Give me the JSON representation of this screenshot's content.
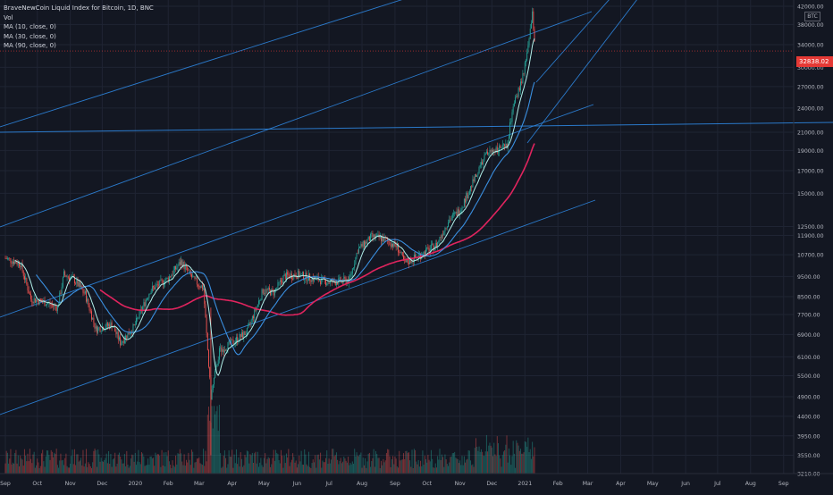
{
  "legend": {
    "line1": "BraveNewCoin Liquid Index for Bitcoin, 1D, BNC",
    "line2": "Vol",
    "line3": "MA (10, close, 0)",
    "line4": "MA (30, close, 0)",
    "line5": "MA (90, close, 0)"
  },
  "badge": "BTC",
  "last_price_label": "32838.02",
  "colors": {
    "background": "#131722",
    "grid": "#1f2433",
    "up": "#26a69a",
    "down": "#ef5350",
    "ma10": "#b2f0ea",
    "ma30": "#3a8fe0",
    "ma90": "#e0245e",
    "trend": "#2f8be8"
  },
  "chart_data": {
    "type": "candlestick",
    "title": "BraveNewCoin Liquid Index for Bitcoin, 1D, BNC",
    "y_scale": "log",
    "ylim": [
      3300,
      42000
    ],
    "y_ticks": [
      42000,
      38000,
      34000,
      30000,
      27000,
      24000,
      21000,
      19000,
      17000,
      15000,
      12500,
      11900,
      10700,
      9500,
      8500,
      7700,
      6900,
      6100,
      5500,
      4900,
      4400,
      3950,
      3550,
      3210
    ],
    "y_tick_labels": [
      "42000.00",
      "38000.00",
      "34000.00",
      "30000.00",
      "27000.00",
      "24000.00",
      "21000.00",
      "19000.00",
      "17000.00",
      "15000.00",
      "12500.00",
      "11900.00",
      "10700.00",
      "9500.00",
      "8500.00",
      "7700.00",
      "6900.00",
      "6100.00",
      "5500.00",
      "4900.00",
      "4400.00",
      "3950.00",
      "3550.00",
      "3210.00"
    ],
    "x_tick_labels": [
      "Sep",
      "Oct",
      "Nov",
      "Dec",
      "2020",
      "Feb",
      "Mar",
      "Apr",
      "May",
      "Jun",
      "Jul",
      "Aug",
      "Sep",
      "Oct",
      "Nov",
      "Dec",
      "2021",
      "Feb",
      "Mar",
      "Apr",
      "May",
      "Jun",
      "Jul",
      "Aug",
      "Sep"
    ],
    "last_price": 32838.02,
    "price_path": [
      [
        "2019-09-01",
        10500
      ],
      [
        "2019-09-15",
        10200
      ],
      [
        "2019-09-25",
        8400
      ],
      [
        "2019-10-10",
        8200
      ],
      [
        "2019-10-20",
        8000
      ],
      [
        "2019-10-26",
        9600
      ],
      [
        "2019-11-05",
        9300
      ],
      [
        "2019-11-15",
        8600
      ],
      [
        "2019-11-25",
        7100
      ],
      [
        "2019-12-10",
        7300
      ],
      [
        "2019-12-18",
        6600
      ],
      [
        "2019-12-31",
        7200
      ],
      [
        "2020-01-15",
        8800
      ],
      [
        "2020-02-01",
        9400
      ],
      [
        "2020-02-13",
        10300
      ],
      [
        "2020-02-25",
        9300
      ],
      [
        "2020-03-05",
        8900
      ],
      [
        "2020-03-12",
        4900
      ],
      [
        "2020-03-20",
        6300
      ],
      [
        "2020-04-01",
        6600
      ],
      [
        "2020-04-15",
        7000
      ],
      [
        "2020-04-30",
        8800
      ],
      [
        "2020-05-10",
        8700
      ],
      [
        "2020-05-20",
        9500
      ],
      [
        "2020-06-01",
        9600
      ],
      [
        "2020-06-15",
        9400
      ],
      [
        "2020-07-01",
        9200
      ],
      [
        "2020-07-20",
        9300
      ],
      [
        "2020-07-28",
        11000
      ],
      [
        "2020-08-10",
        11800
      ],
      [
        "2020-08-20",
        11700
      ],
      [
        "2020-09-03",
        11200
      ],
      [
        "2020-09-10",
        10200
      ],
      [
        "2020-09-25",
        10700
      ],
      [
        "2020-10-10",
        11300
      ],
      [
        "2020-10-21",
        12900
      ],
      [
        "2020-11-01",
        13700
      ],
      [
        "2020-11-10",
        15300
      ],
      [
        "2020-11-25",
        18500
      ],
      [
        "2020-12-05",
        19200
      ],
      [
        "2020-12-15",
        19300
      ],
      [
        "2020-12-20",
        23500
      ],
      [
        "2020-12-31",
        29000
      ],
      [
        "2021-01-08",
        40000
      ],
      [
        "2021-01-11",
        32838.02
      ]
    ],
    "series": [
      {
        "name": "Vol",
        "type": "histogram"
      },
      {
        "name": "MA (10, close, 0)",
        "type": "line"
      },
      {
        "name": "MA (30, close, 0)",
        "type": "line"
      },
      {
        "name": "MA (90, close, 0)",
        "type": "line"
      }
    ],
    "grid": true
  }
}
